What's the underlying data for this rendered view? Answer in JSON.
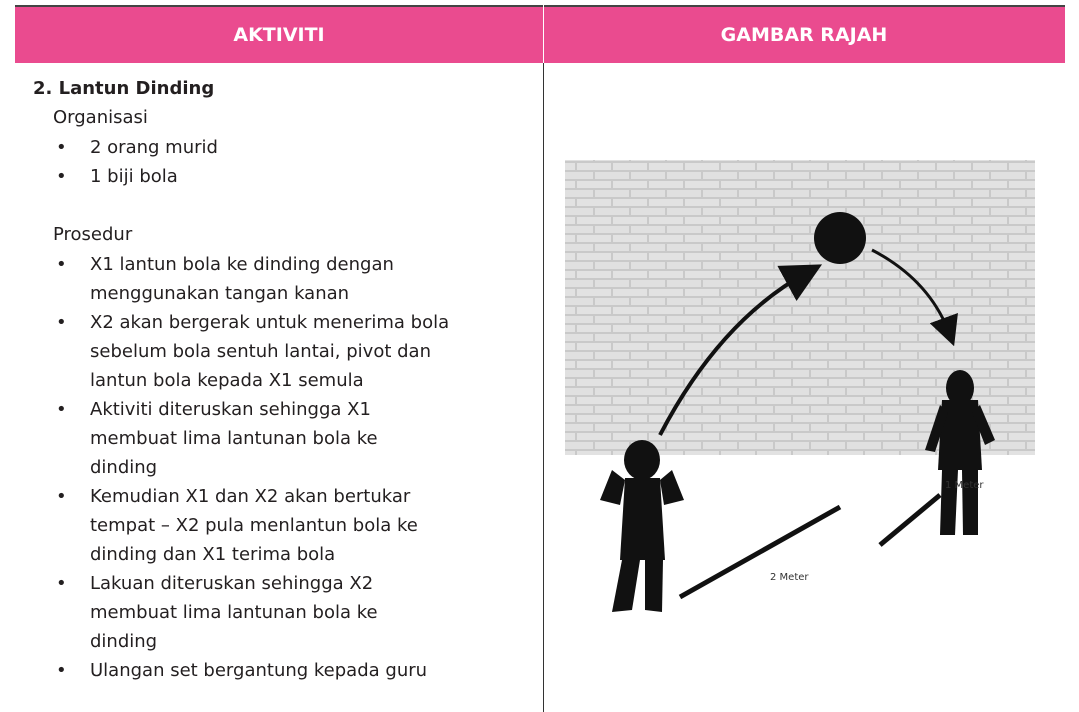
{
  "header": {
    "columns": [
      "AKTIVITI",
      "GAMBAR RAJAH"
    ]
  },
  "activity": {
    "title": "2.  Lantun Dinding",
    "sections": [
      {
        "heading": "Organisasi",
        "items": [
          [
            "2 orang murid"
          ],
          [
            "1 biji bola"
          ]
        ]
      },
      {
        "heading": "Prosedur",
        "items": [
          [
            "X1 lantun bola ke dinding dengan",
            "menggunakan tangan kanan"
          ],
          [
            "X2 akan bergerak untuk menerima bola",
            "sebelum bola sentuh lantai, pivot dan",
            "lantun bola kepada X1 semula"
          ],
          [
            "Aktiviti diteruskan sehingga X1",
            "membuat lima lantunan bola ke",
            "dinding"
          ],
          [
            "Kemudian X1 dan X2 akan bertukar",
            "tempat – X2 pula menlantun bola ke",
            "dinding dan X1 terima bola"
          ],
          [
            "Lakuan diteruskan sehingga X2",
            "membuat lima lantunan bola ke",
            "dinding"
          ],
          [
            "Ulangan set bergantung kepada guru"
          ]
        ]
      }
    ]
  },
  "diagram": {
    "labels": [
      "1 Meter",
      "2 Meter"
    ]
  }
}
